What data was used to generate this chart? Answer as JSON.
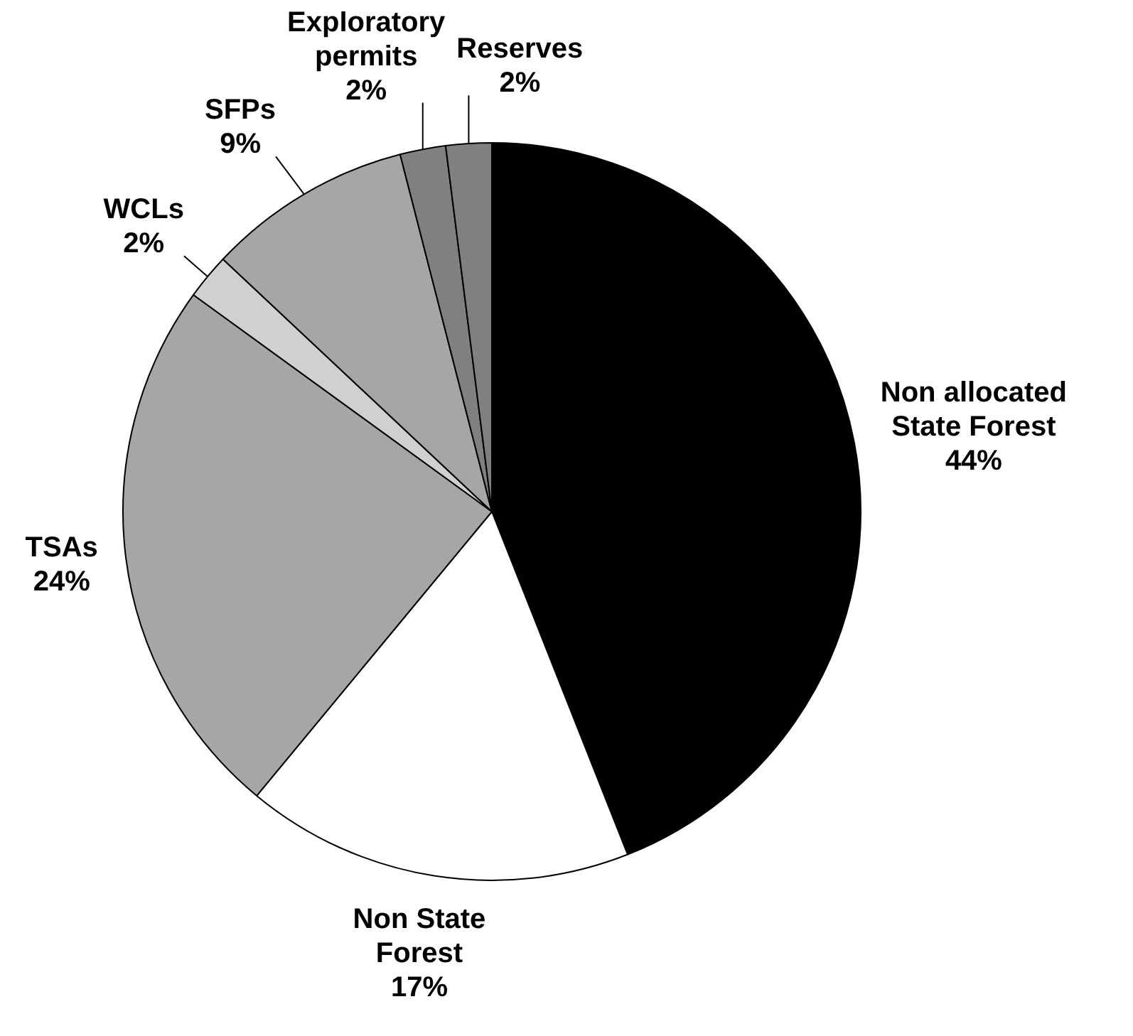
{
  "chart_data": {
    "type": "pie",
    "categories": [
      "Non allocated State Forest",
      "Non State Forest",
      "TSAs",
      "WCLs",
      "SFPs",
      "Exploratory permits",
      "Reserves"
    ],
    "values": [
      44,
      17,
      24,
      2,
      9,
      2,
      2
    ],
    "value_labels": [
      "44%",
      "17%",
      "24%",
      "2%",
      "9%",
      "2%",
      "2%"
    ],
    "colors": [
      "#000000",
      "#ffffff",
      "#a6a6a6",
      "#d0d0d0",
      "#a6a6a6",
      "#808080",
      "#808080"
    ],
    "legend": false
  }
}
